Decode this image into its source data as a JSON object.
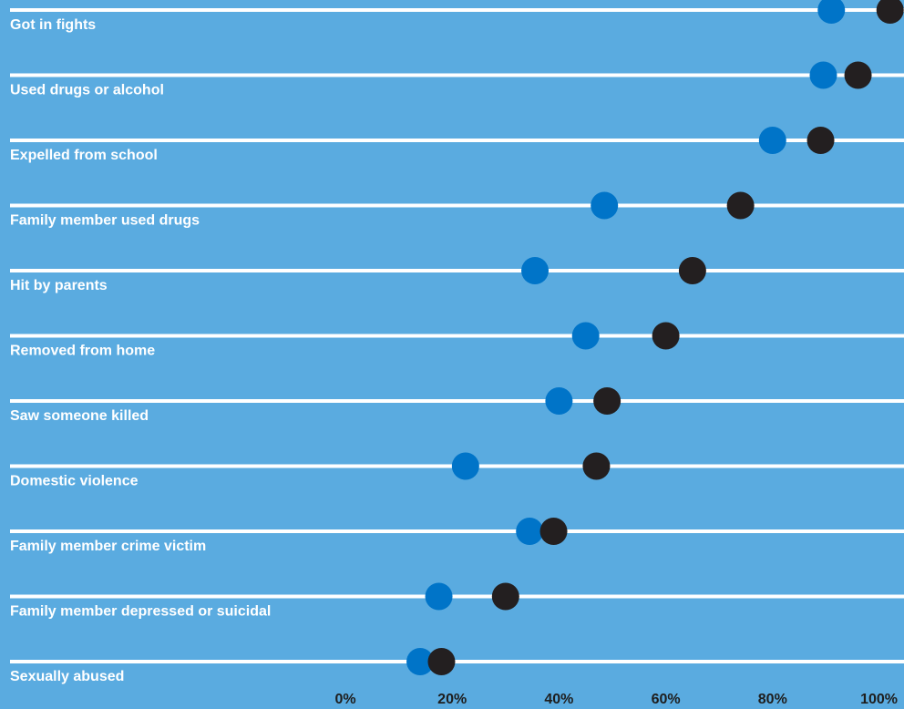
{
  "chart_data": {
    "type": "dot-plot",
    "x_ticks": [
      "0%",
      "20%",
      "40%",
      "60%",
      "80%",
      "100%"
    ],
    "xlim": [
      0,
      100
    ],
    "grid": false,
    "legend": "none",
    "series": [
      {
        "color": "#0074C8"
      },
      {
        "color": "#231F20"
      }
    ],
    "rows": [
      {
        "label": "Got in fights",
        "values": [
          91,
          102
        ]
      },
      {
        "label": "Used drugs or alcohol",
        "values": [
          89.5,
          96
        ]
      },
      {
        "label": "Expelled from school",
        "values": [
          80,
          89
        ]
      },
      {
        "label": "Family member used drugs",
        "values": [
          48.5,
          74
        ]
      },
      {
        "label": "Hit by parents",
        "values": [
          35.5,
          65
        ]
      },
      {
        "label": "Removed from home",
        "values": [
          45,
          60
        ]
      },
      {
        "label": "Saw someone killed",
        "values": [
          40,
          49
        ]
      },
      {
        "label": "Domestic violence",
        "values": [
          22.5,
          47
        ]
      },
      {
        "label": "Family member crime victim",
        "values": [
          34.5,
          39
        ]
      },
      {
        "label": "Family member depressed or suicidal",
        "values": [
          17.5,
          30
        ]
      },
      {
        "label": "Sexually abused",
        "values": [
          14,
          18
        ]
      }
    ]
  },
  "colors": {
    "background": "#5AABE0",
    "line": "#FFFFFF",
    "label": "#FFFFFF",
    "tick": "#1E1E1E"
  }
}
